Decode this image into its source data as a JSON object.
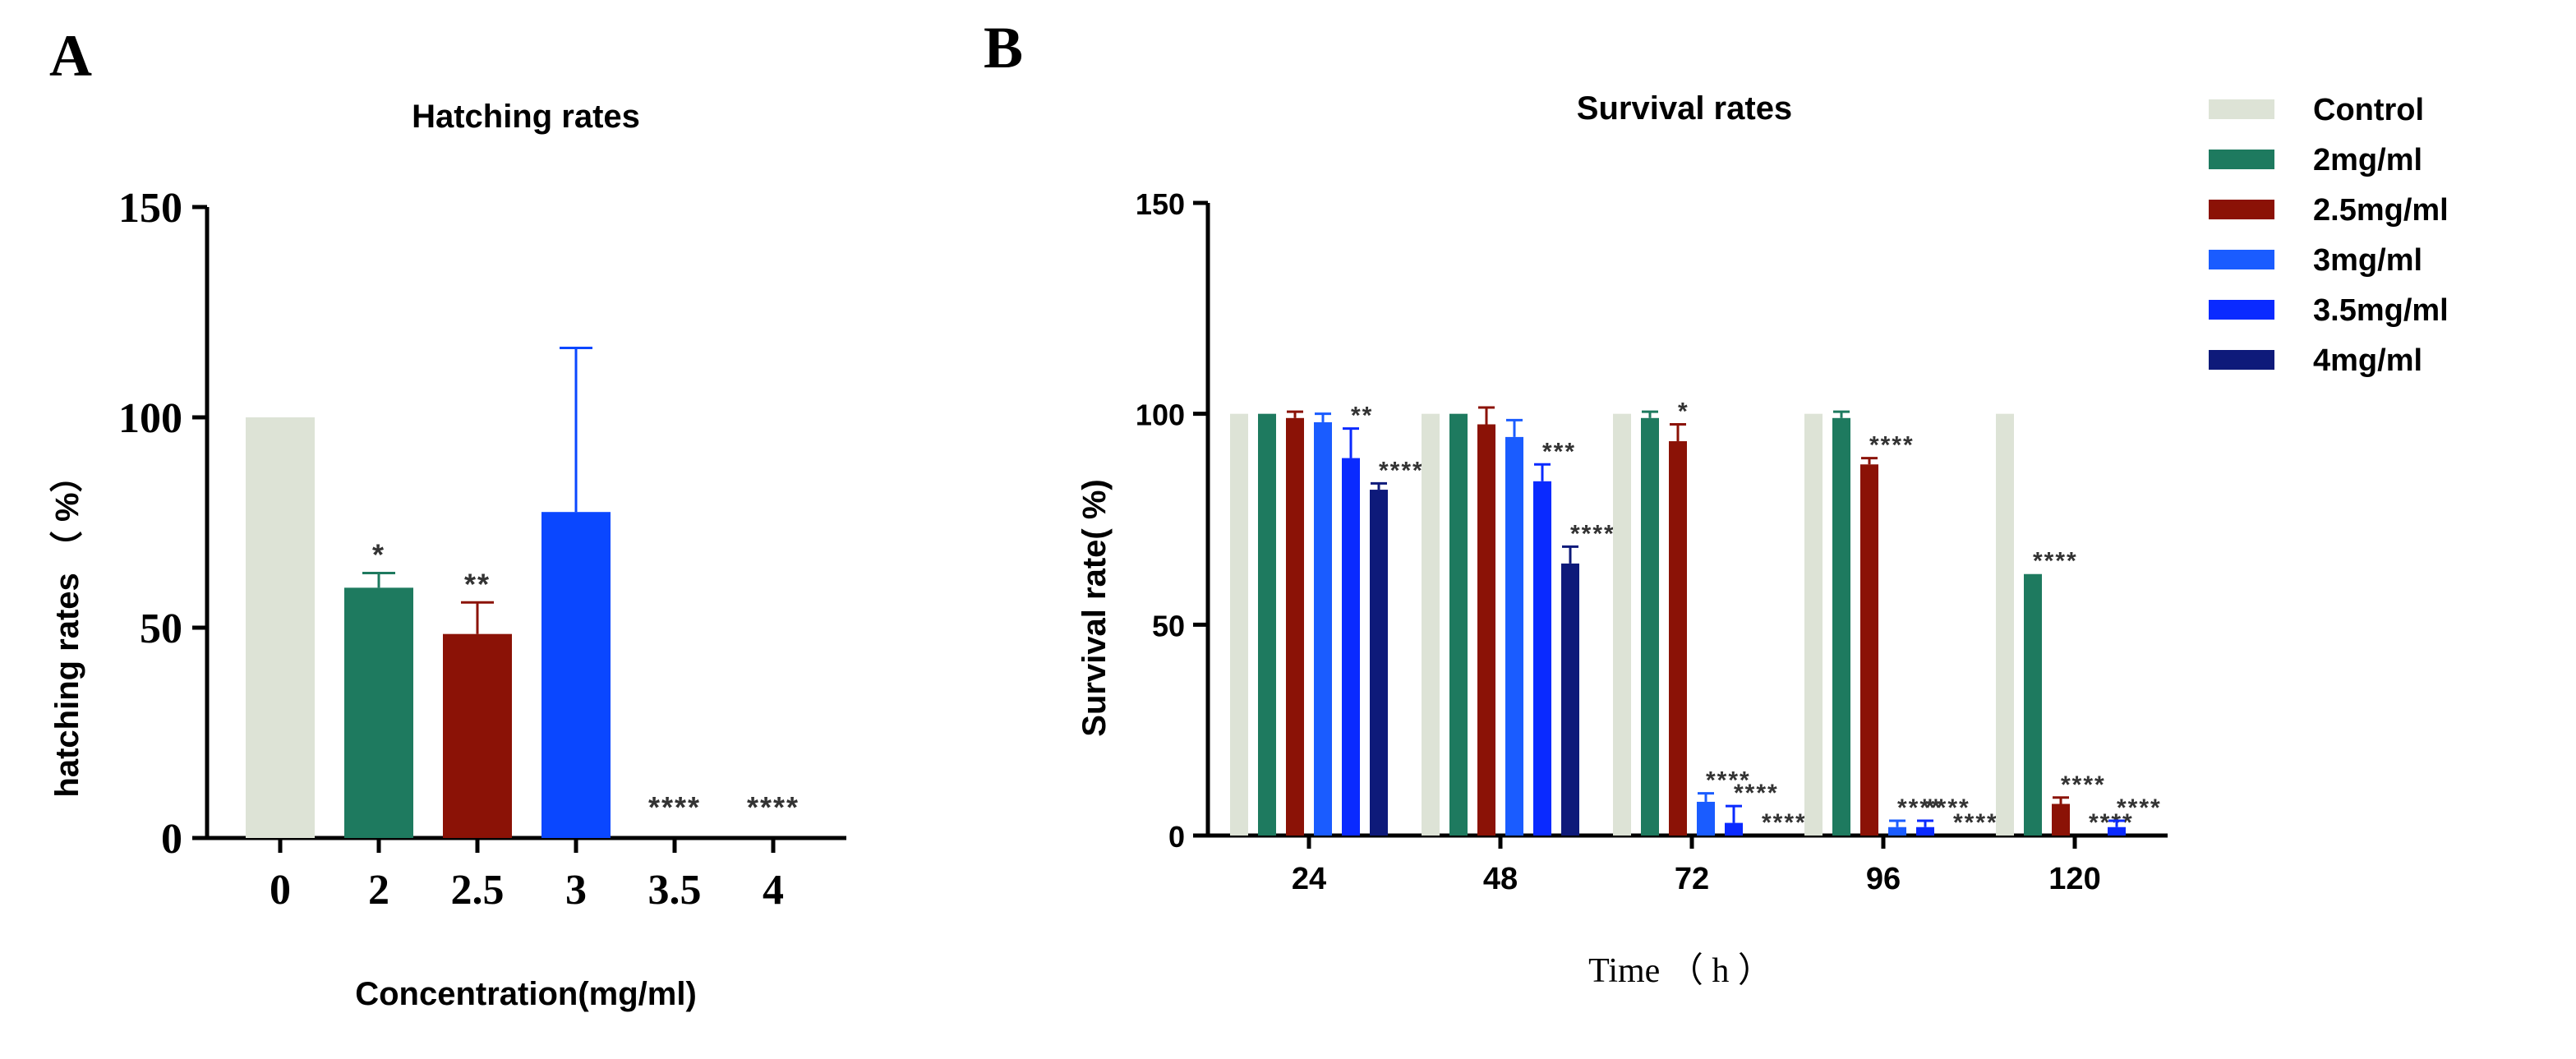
{
  "chart_data": [
    {
      "panel_label": "A",
      "type": "bar",
      "title": "Hatching rates",
      "xlabel": "Concentration(mg/ml)",
      "ylabel": "hatching rates （ %）",
      "ylim": [
        0,
        150
      ],
      "yticks": [
        "0",
        "50",
        "100",
        "150"
      ],
      "categories": [
        "0",
        "2",
        "2.5",
        "3",
        "3.5",
        "4"
      ],
      "values": [
        100,
        59.5,
        48.5,
        77.5,
        0,
        0
      ],
      "errors": [
        0,
        3.5,
        7.5,
        39,
        0,
        0
      ],
      "significance": [
        "",
        "*",
        "**",
        "",
        "****",
        "****"
      ],
      "colors": [
        "#dde3d6",
        "#1e7a5f",
        "#8b1206",
        "#0a47ff",
        "#0a2aff",
        "#0e1a7a"
      ]
    },
    {
      "panel_label": "B",
      "type": "bar",
      "title": "Survival rates",
      "xlabel": "Time （ h ）",
      "ylabel": "Survival rate( %)",
      "ylim": [
        0,
        150
      ],
      "yticks": [
        "0",
        "50",
        "100",
        "150"
      ],
      "categories": [
        "24",
        "48",
        "72",
        "96",
        "120"
      ],
      "series": [
        {
          "name": "Control",
          "color": "#dde3d6",
          "values": [
            100,
            100,
            100,
            100,
            100
          ],
          "errors": [
            0,
            0,
            0,
            0,
            0
          ],
          "significance": [
            "",
            "",
            "",
            "",
            ""
          ]
        },
        {
          "name": "2mg/ml",
          "color": "#1e7a5f",
          "values": [
            100,
            100,
            99,
            99,
            62
          ],
          "errors": [
            0,
            0,
            1.5,
            1.5,
            0
          ],
          "significance": [
            "",
            "",
            "",
            "",
            "****"
          ]
        },
        {
          "name": "2.5mg/ml",
          "color": "#8b1206",
          "values": [
            99,
            97.5,
            93.5,
            88,
            7.5
          ],
          "errors": [
            1.5,
            4,
            4,
            1.5,
            1.5
          ],
          "significance": [
            "",
            "",
            "*",
            "****",
            "****"
          ]
        },
        {
          "name": "3mg/ml",
          "color": "#1a5cff",
          "values": [
            98,
            94.5,
            8,
            2,
            0
          ],
          "errors": [
            2,
            4,
            2,
            1.5,
            0
          ],
          "significance": [
            "",
            "",
            "****",
            "****",
            "****"
          ]
        },
        {
          "name": "3.5mg/ml",
          "color": "#0a2aff",
          "values": [
            89.5,
            84,
            3,
            2,
            2
          ],
          "errors": [
            7,
            4,
            4,
            1.5,
            1.5
          ],
          "significance": [
            "**",
            "***",
            "****",
            "****",
            "****"
          ]
        },
        {
          "name": "4mg/ml",
          "color": "#0e1a7a",
          "values": [
            82,
            64.5,
            0,
            0,
            0
          ],
          "errors": [
            1.5,
            4,
            0,
            0,
            0
          ],
          "significance": [
            "****",
            "****",
            "****",
            "****",
            ""
          ]
        }
      ],
      "legend_position": "top-right"
    }
  ]
}
